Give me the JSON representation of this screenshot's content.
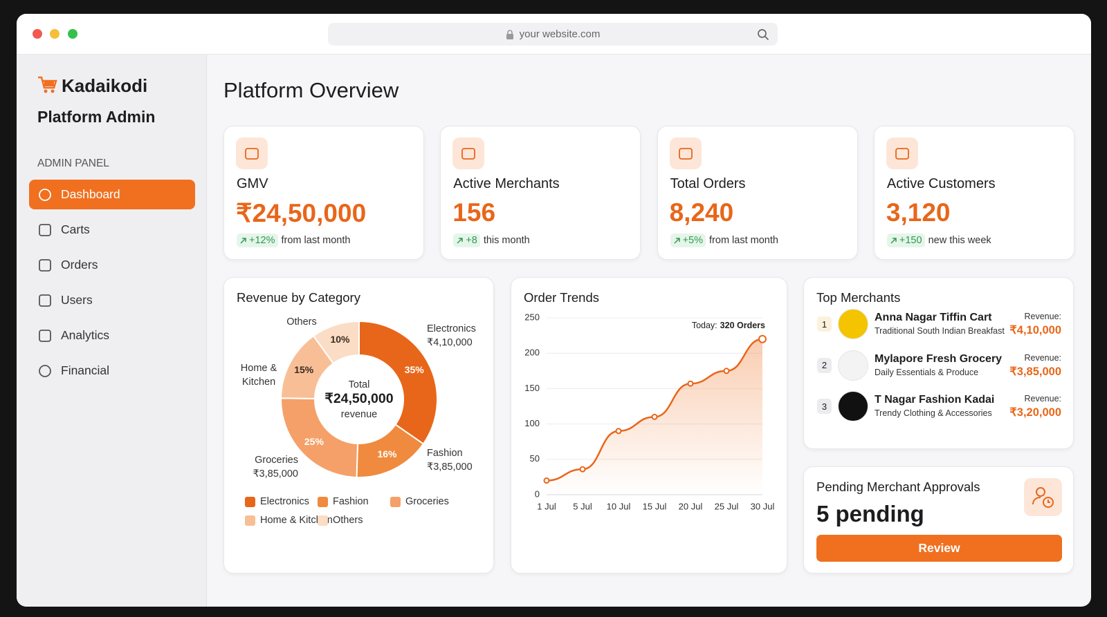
{
  "browser": {
    "url": "your website.com"
  },
  "sidebar": {
    "brand": "Kadaikodi",
    "subtitle": "Platform Admin",
    "section": "ADMIN PANEL",
    "nav": [
      "Dashboard",
      "Carts",
      "Orders",
      "Users",
      "Analytics",
      "Financial"
    ],
    "active": 0
  },
  "header": {
    "title": "Platform Overview"
  },
  "stats": [
    {
      "label": "GMV",
      "value": "₹24,50,000",
      "change": "+12%",
      "note": "from last month"
    },
    {
      "label": "Active Merchants",
      "value": "156",
      "change": "+8",
      "note": "this month"
    },
    {
      "label": "Total Orders",
      "value": "8,240",
      "change": "+5%",
      "note": "from last month"
    },
    {
      "label": "Active Customers",
      "value": "3,120",
      "change": "+150",
      "note": "new this week"
    }
  ],
  "chart_data": [
    {
      "type": "pie",
      "title": "Revenue by Category",
      "categories": [
        "Electronics",
        "Fashion",
        "Groceries",
        "Home & Kitchen",
        "Others"
      ],
      "values": [
        35,
        16,
        25,
        15,
        10
      ],
      "value_labels": [
        "35%",
        "16%",
        "25%",
        "15%",
        "10%"
      ],
      "amounts": [
        "₹4,10,000",
        "₹3,85,000",
        "₹3,85,000",
        null,
        null
      ],
      "colors": [
        "#e8661a",
        "#f08a3e",
        "#f5a068",
        "#f8bf96",
        "#fbdcc4"
      ],
      "center": {
        "top": "Total",
        "value": "₹24,50,000",
        "bottom": "revenue"
      }
    },
    {
      "type": "line",
      "title": "Order Trends",
      "categories": [
        "1 Jul",
        "5 Jul",
        "10 Jul",
        "15 Jul",
        "20 Jul",
        "25 Jul",
        "30 Jul"
      ],
      "values": [
        20,
        36,
        90,
        110,
        157,
        175,
        220
      ],
      "color": "#e8661a",
      "ylim": [
        0,
        250
      ],
      "yticks": [
        0,
        50,
        100,
        150,
        200,
        250
      ],
      "grid": true,
      "annotation": {
        "label": "Today:",
        "text": "320 Orders"
      }
    }
  ],
  "merchants": {
    "title": "Top Merchants",
    "revenue_label": "Revenue:",
    "items": [
      {
        "rank": "1",
        "name": "Anna Nagar Tiffin Cart",
        "description": "Traditional South Indian Breakfast",
        "revenue": "₹4,10,000"
      },
      {
        "rank": "2",
        "name": "Mylapore Fresh Grocery",
        "description": "Daily Essentials & Produce",
        "revenue": "₹3,85,000"
      },
      {
        "rank": "3",
        "name": "T Nagar Fashion Kadai",
        "description": "Trendy Clothing & Accessories",
        "revenue": "₹3,20,000"
      }
    ]
  },
  "pending": {
    "title": "Pending Merchant Approvals",
    "value": "5 pending",
    "button": "Review"
  }
}
